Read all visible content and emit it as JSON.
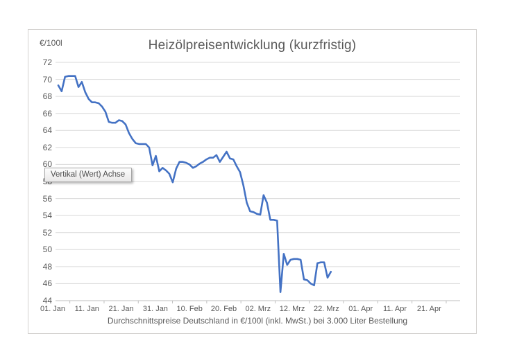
{
  "chart": {
    "title": "Heizölpreisentwicklung (kurzfristig)",
    "y_unit_label": "€/100l",
    "x_axis_title": "Durchschnittspreise Deutschland in €/100l (inkl. MwSt.) bei 3.000 Liter Bestellung",
    "tooltip_text": "Vertikal (Wert) Achse",
    "colors": {
      "line": "#4472c4",
      "grid": "#d9d9d9",
      "axis": "#bfbfbf",
      "text": "#595959",
      "frame_border": "#d2d0ce"
    }
  },
  "chart_data": {
    "type": "line",
    "title": "Heizölpreisentwicklung (kurzfristig)",
    "xlabel": "Durchschnittspreise Deutschland in €/100l (inkl. MwSt.) bei 3.000 Liter Bestellung",
    "ylabel": "€/100l",
    "ylim": [
      44,
      72
    ],
    "y_tick_step": 2,
    "y_tick_labels": [
      "72",
      "70",
      "68",
      "66",
      "64",
      "62",
      "60",
      "58",
      "56",
      "54",
      "52",
      "50",
      "48",
      "46",
      "44"
    ],
    "x_tick_labels": [
      "01. Jan",
      "11. Jan",
      "21. Jan",
      "31. Jan",
      "10. Feb",
      "20. Feb",
      "02. Mrz",
      "12. Mrz",
      "22. Mrz",
      "01. Apr",
      "11. Apr",
      "21. Apr"
    ],
    "grid": true,
    "legend": false,
    "dates": [
      "01.01",
      "02.01",
      "03.01",
      "04.01",
      "05.01",
      "06.01",
      "07.01",
      "08.01",
      "09.01",
      "10.01",
      "11.01",
      "12.01",
      "13.01",
      "14.01",
      "15.01",
      "16.01",
      "17.01",
      "18.01",
      "19.01",
      "20.01",
      "21.01",
      "22.01",
      "23.01",
      "24.01",
      "25.01",
      "26.01",
      "27.01",
      "28.01",
      "29.01",
      "30.01",
      "31.01",
      "01.02",
      "02.02",
      "03.02",
      "04.02",
      "05.02",
      "06.02",
      "07.02",
      "08.02",
      "09.02",
      "10.02",
      "11.02",
      "12.02",
      "13.02",
      "14.02",
      "15.02",
      "16.02",
      "17.02",
      "18.02",
      "19.02",
      "20.02",
      "21.02",
      "22.02",
      "23.02",
      "24.02",
      "25.02",
      "26.02",
      "27.02",
      "28.02",
      "01.03",
      "02.03",
      "03.03",
      "04.03",
      "05.03",
      "06.03",
      "07.03",
      "08.03",
      "09.03",
      "10.03",
      "11.03",
      "12.03",
      "13.03",
      "14.03",
      "15.03",
      "16.03",
      "17.03",
      "18.03",
      "19.03",
      "20.03",
      "21.03",
      "22.03",
      "23.03"
    ],
    "values": [
      69.3,
      68.6,
      70.3,
      70.4,
      70.4,
      70.4,
      69.1,
      69.7,
      68.5,
      67.7,
      67.3,
      67.3,
      67.2,
      66.8,
      66.2,
      65.0,
      64.9,
      64.9,
      65.2,
      65.1,
      64.7,
      63.7,
      63.0,
      62.5,
      62.4,
      62.4,
      62.4,
      62.0,
      59.9,
      61.0,
      59.2,
      59.6,
      59.3,
      58.9,
      57.9,
      59.5,
      60.3,
      60.3,
      60.2,
      60.0,
      59.6,
      59.8,
      60.1,
      60.3,
      60.6,
      60.8,
      60.8,
      61.1,
      60.3,
      60.9,
      61.5,
      60.7,
      60.6,
      59.8,
      59.1,
      57.5,
      55.5,
      54.5,
      54.4,
      54.2,
      54.1,
      56.4,
      55.5,
      53.5,
      53.5,
      53.4,
      45.0,
      49.5,
      48.2,
      48.8,
      48.9,
      48.9,
      48.8,
      46.5,
      46.4,
      46.0,
      45.8,
      48.4,
      48.5,
      48.5,
      46.7,
      47.4
    ]
  }
}
